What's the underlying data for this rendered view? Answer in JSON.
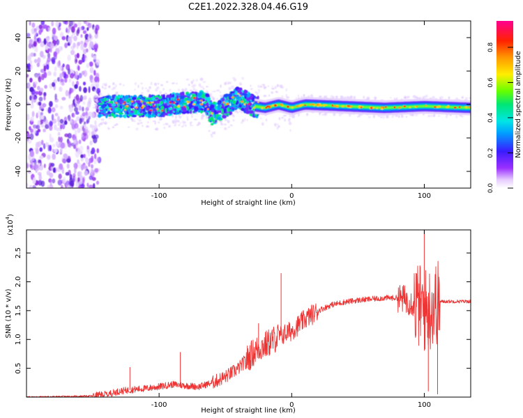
{
  "chart_data": [
    {
      "type": "heatmap",
      "title": "C2E1.2022.328.04.46.G19",
      "xlabel": "Height of straight line (km)",
      "ylabel": "Frequency (Hz)",
      "xlim": [
        -200,
        135
      ],
      "ylim": [
        -50,
        50
      ],
      "xticks": [
        -100,
        0,
        100
      ],
      "xtick_labels": [
        "-100",
        "0",
        "100"
      ],
      "yticks": [
        -40,
        -20,
        0,
        20,
        40
      ],
      "ytick_labels": [
        "-40",
        "-20",
        "0",
        "20",
        "40"
      ],
      "colorbar": {
        "label": "Normalized spectral amplitude",
        "range": [
          0,
          0.95
        ],
        "ticks": [
          0.0,
          0.2,
          0.4,
          0.6,
          0.8
        ],
        "tick_labels": [
          "0.0",
          "0.2",
          "0.4",
          "0.6",
          "0.8"
        ]
      },
      "ridge": {
        "x": [
          -140,
          -120,
          -100,
          -80,
          -65,
          -60,
          -50,
          -40,
          -33,
          -28,
          -20,
          -10,
          0,
          10,
          40,
          70,
          100,
          135
        ],
        "y": [
          -1,
          -1,
          -1,
          1,
          2,
          -6,
          -1,
          4,
          1,
          -1,
          -2,
          0,
          -2,
          0,
          -1,
          -2,
          -1,
          -2
        ]
      },
      "grid": false
    },
    {
      "type": "line",
      "xlabel": "Height of straight line (km)",
      "ylabel": "SNR (10 * v/v)",
      "y_multiplier": "(x10",
      "y_multiplier_exp": "4",
      "y_multiplier_close": ")",
      "xlim": [
        -200,
        135
      ],
      "ylim": [
        0,
        2.9
      ],
      "xticks": [
        -100,
        0,
        100
      ],
      "xtick_labels": [
        "-100",
        "0",
        "100"
      ],
      "yticks": [
        0.5,
        1.0,
        1.5,
        2.0,
        2.5
      ],
      "ytick_labels": [
        "0.5",
        "1.0",
        "1.5",
        "2.0",
        "2.5"
      ],
      "series": [
        {
          "color": "#ee3333",
          "x": [
            -200,
            -170,
            -150,
            -140,
            -130,
            -120,
            -110,
            -100,
            -90,
            -80,
            -70,
            -60,
            -50,
            -40,
            -30,
            -25,
            -20,
            -10,
            0,
            10,
            20,
            30,
            40,
            50,
            60,
            70,
            80,
            85,
            90,
            95,
            100,
            105,
            110,
            115,
            120,
            135
          ],
          "y": [
            0.0,
            0.01,
            0.02,
            0.05,
            0.1,
            0.13,
            0.15,
            0.18,
            0.22,
            0.2,
            0.18,
            0.25,
            0.35,
            0.5,
            0.75,
            0.85,
            0.9,
            1.05,
            1.15,
            1.35,
            1.5,
            1.6,
            1.65,
            1.68,
            1.7,
            1.72,
            1.72,
            1.7,
            1.65,
            1.6,
            1.5,
            1.55,
            1.65,
            1.66,
            1.66,
            1.66
          ]
        }
      ],
      "annotations": [
        {
          "x": -122,
          "y": 0.52
        },
        {
          "x": -84,
          "y": 0.78
        },
        {
          "x": -25,
          "y": 1.28
        },
        {
          "x": -8,
          "y": 2.15
        },
        {
          "x": 100,
          "y": 2.9
        },
        {
          "x": 103,
          "y": 0.1
        },
        {
          "x": 110,
          "y": 0.05
        }
      ],
      "grid": false
    }
  ]
}
